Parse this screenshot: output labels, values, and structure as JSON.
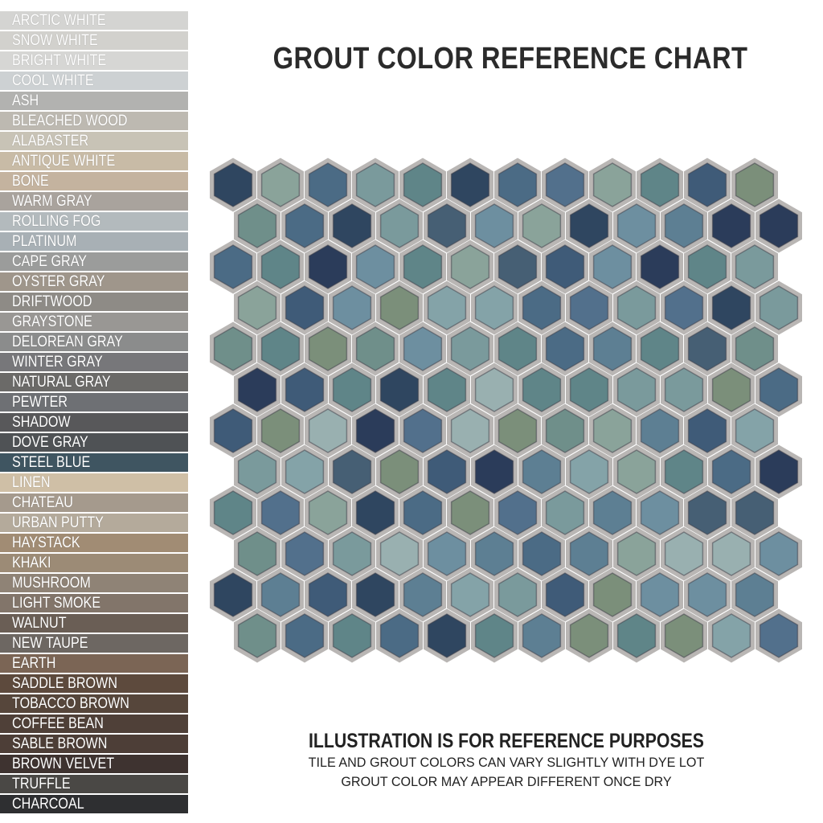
{
  "title": "GROUT COLOR REFERENCE CHART",
  "swatches": [
    {
      "name": "ARCTIC WHITE",
      "color": "#d4d4d2"
    },
    {
      "name": "SNOW WHITE",
      "color": "#d2d1cd"
    },
    {
      "name": "BRIGHT WHITE",
      "color": "#d6d6d4"
    },
    {
      "name": "COOL WHITE",
      "color": "#cdd1d3"
    },
    {
      "name": "ASH",
      "color": "#b2b2b0"
    },
    {
      "name": "BLEACHED WOOD",
      "color": "#bdb9b1"
    },
    {
      "name": "ALABASTER",
      "color": "#c8c3b6"
    },
    {
      "name": "ANTIQUE WHITE",
      "color": "#c8bba6"
    },
    {
      "name": "BONE",
      "color": "#c4b39f"
    },
    {
      "name": "WARM GRAY",
      "color": "#a9a39d"
    },
    {
      "name": "ROLLING FOG",
      "color": "#b3babd"
    },
    {
      "name": "PLATINUM",
      "color": "#a8b0b5"
    },
    {
      "name": "CAPE GRAY",
      "color": "#9b9c9b"
    },
    {
      "name": "OYSTER GRAY",
      "color": "#9f968b"
    },
    {
      "name": "DRIFTWOOD",
      "color": "#8e8b86"
    },
    {
      "name": "GRAYSTONE",
      "color": "#999794"
    },
    {
      "name": "DELOREAN GRAY",
      "color": "#8b8c8c"
    },
    {
      "name": "WINTER GRAY",
      "color": "#77777a"
    },
    {
      "name": "NATURAL GRAY",
      "color": "#6b6a68"
    },
    {
      "name": "PEWTER",
      "color": "#6e7074"
    },
    {
      "name": "SHADOW",
      "color": "#58585a"
    },
    {
      "name": "DOVE GRAY",
      "color": "#4f5255"
    },
    {
      "name": "STEEL BLUE",
      "color": "#3f5561"
    },
    {
      "name": "LINEN",
      "color": "#cfbfa6"
    },
    {
      "name": "CHATEAU",
      "color": "#a59a8d"
    },
    {
      "name": "URBAN PUTTY",
      "color": "#b4aa9b"
    },
    {
      "name": "HAYSTACK",
      "color": "#a18c74"
    },
    {
      "name": "KHAKI",
      "color": "#9c8b76"
    },
    {
      "name": "MUSHROOM",
      "color": "#8f8376"
    },
    {
      "name": "LIGHT SMOKE",
      "color": "#82756a"
    },
    {
      "name": "WALNUT",
      "color": "#6a5e55"
    },
    {
      "name": "NEW TAUPE",
      "color": "#6d6762"
    },
    {
      "name": "EARTH",
      "color": "#7b6555"
    },
    {
      "name": "SADDLE BROWN",
      "color": "#5d4a3d"
    },
    {
      "name": "TOBACCO BROWN",
      "color": "#56463b"
    },
    {
      "name": "COFFEE BEAN",
      "color": "#4f4038"
    },
    {
      "name": "SABLE BROWN",
      "color": "#4d3e37"
    },
    {
      "name": "BROWN VELVET",
      "color": "#3e3330"
    },
    {
      "name": "TRUFFLE",
      "color": "#4a4845"
    },
    {
      "name": "CHARCOAL",
      "color": "#2e2f31"
    }
  ],
  "mosaic": {
    "grout_color": "#b9b6b4",
    "tile_palette": [
      "#5d7f93",
      "#4b6b85",
      "#6d8fa0",
      "#7a9a9c",
      "#3f5b78",
      "#84a3a8",
      "#5f8588",
      "#2f4660",
      "#8aa39a",
      "#6f8f8a",
      "#465f74",
      "#7b8f7a",
      "#99b0b0",
      "#52708c",
      "#2b3c5a"
    ]
  },
  "note": {
    "heading": "ILLUSTRATION IS FOR REFERENCE PURPOSES",
    "line1": "TILE AND GROUT COLORS CAN VARY SLIGHTLY WITH DYE LOT",
    "line2": "GROUT COLOR MAY APPEAR DIFFERENT ONCE DRY"
  }
}
